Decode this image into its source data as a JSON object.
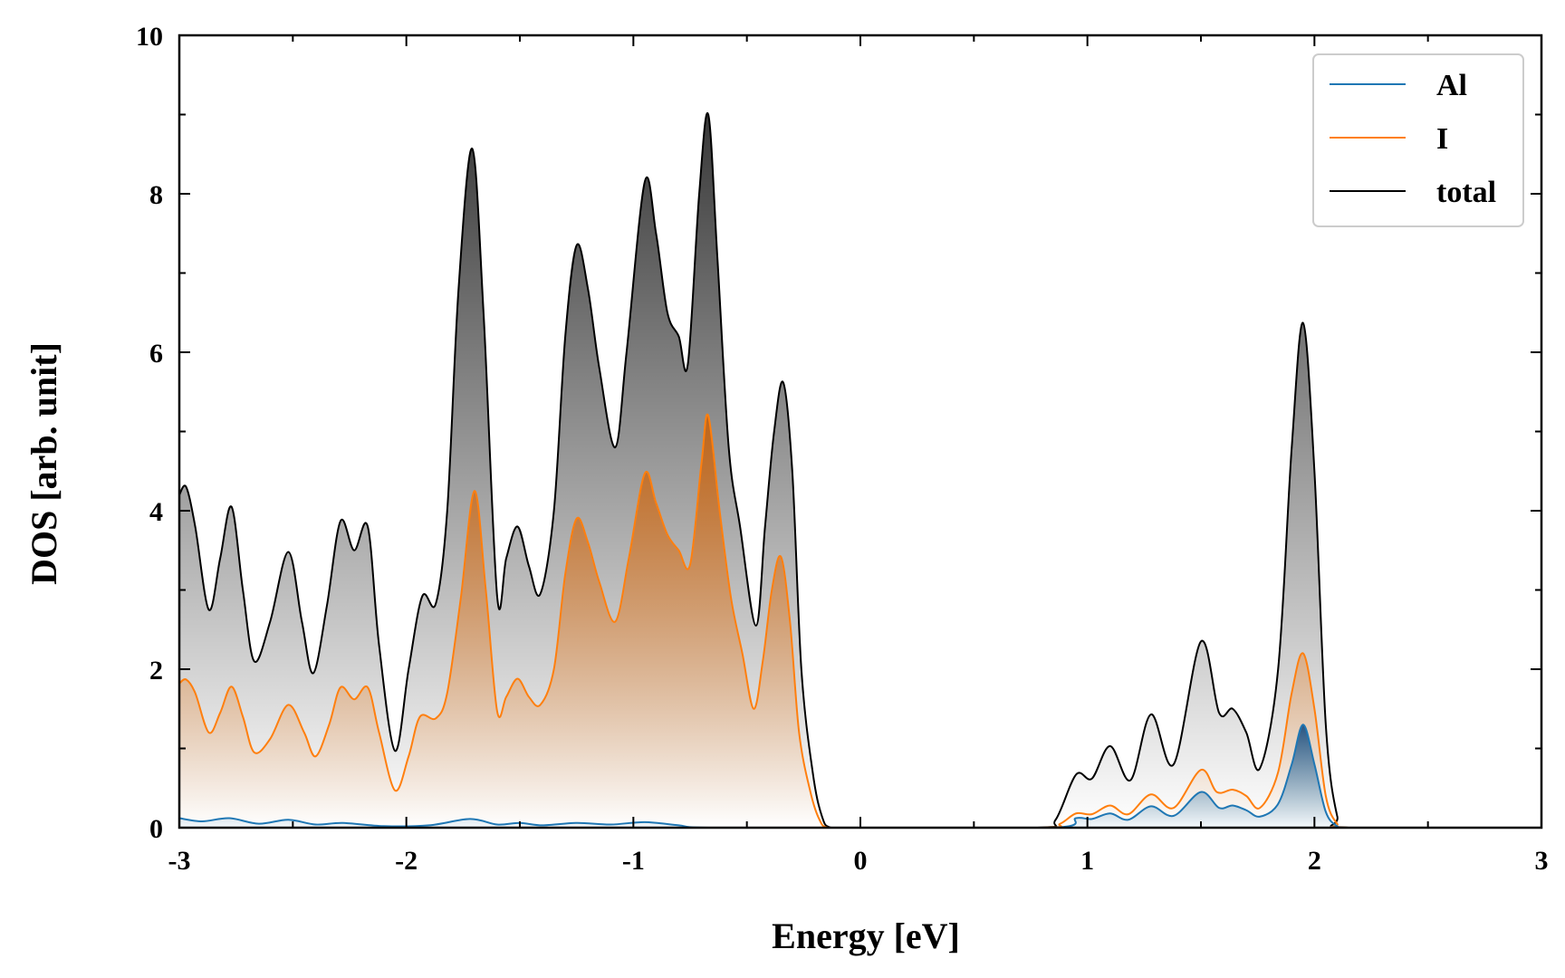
{
  "chart_data": {
    "type": "area",
    "title": "",
    "xlabel": "Energy [eV]",
    "ylabel": "DOS [arb. unit]",
    "xlim": [
      -3,
      3
    ],
    "ylim": [
      0,
      10
    ],
    "x_ticks": [
      "-3",
      "-2",
      "-1",
      "0",
      "1",
      "2",
      "3"
    ],
    "y_ticks": [
      "0",
      "2",
      "4",
      "6",
      "8",
      "10"
    ],
    "grid": false,
    "legend_position": "top-right",
    "series": [
      {
        "name": "Al",
        "color": "#1f77b4",
        "fill": "gradient",
        "points": [
          [
            -3.0,
            0.12
          ],
          [
            -2.9,
            0.08
          ],
          [
            -2.78,
            0.12
          ],
          [
            -2.65,
            0.05
          ],
          [
            -2.52,
            0.1
          ],
          [
            -2.4,
            0.04
          ],
          [
            -2.28,
            0.06
          ],
          [
            -2.1,
            0.02
          ],
          [
            -1.9,
            0.03
          ],
          [
            -1.72,
            0.11
          ],
          [
            -1.6,
            0.04
          ],
          [
            -1.5,
            0.06
          ],
          [
            -1.4,
            0.03
          ],
          [
            -1.25,
            0.06
          ],
          [
            -1.1,
            0.04
          ],
          [
            -0.95,
            0.07
          ],
          [
            -0.8,
            0.03
          ],
          [
            -0.67,
            0.0
          ],
          [
            0.0,
            0.0
          ],
          [
            0.85,
            0.0
          ],
          [
            0.95,
            0.12
          ],
          [
            1.02,
            0.11
          ],
          [
            1.1,
            0.18
          ],
          [
            1.18,
            0.1
          ],
          [
            1.28,
            0.27
          ],
          [
            1.38,
            0.15
          ],
          [
            1.5,
            0.45
          ],
          [
            1.58,
            0.25
          ],
          [
            1.64,
            0.28
          ],
          [
            1.7,
            0.22
          ],
          [
            1.76,
            0.14
          ],
          [
            1.84,
            0.3
          ],
          [
            1.9,
            0.8
          ],
          [
            1.95,
            1.3
          ],
          [
            2.0,
            0.8
          ],
          [
            2.05,
            0.2
          ],
          [
            2.1,
            0.02
          ],
          [
            2.15,
            0.0
          ],
          [
            3.0,
            0.0
          ]
        ]
      },
      {
        "name": "I",
        "color": "#ff7f0e",
        "fill": "gradient",
        "points": [
          [
            -3.0,
            1.82
          ],
          [
            -2.97,
            1.87
          ],
          [
            -2.93,
            1.7
          ],
          [
            -2.87,
            1.2
          ],
          [
            -2.82,
            1.45
          ],
          [
            -2.77,
            1.78
          ],
          [
            -2.72,
            1.4
          ],
          [
            -2.67,
            0.95
          ],
          [
            -2.6,
            1.12
          ],
          [
            -2.52,
            1.55
          ],
          [
            -2.45,
            1.2
          ],
          [
            -2.4,
            0.9
          ],
          [
            -2.34,
            1.3
          ],
          [
            -2.29,
            1.77
          ],
          [
            -2.23,
            1.62
          ],
          [
            -2.17,
            1.77
          ],
          [
            -2.12,
            1.2
          ],
          [
            -2.05,
            0.47
          ],
          [
            -1.99,
            0.9
          ],
          [
            -1.94,
            1.4
          ],
          [
            -1.87,
            1.38
          ],
          [
            -1.82,
            1.7
          ],
          [
            -1.76,
            2.9
          ],
          [
            -1.7,
            4.25
          ],
          [
            -1.65,
            3.0
          ],
          [
            -1.6,
            1.47
          ],
          [
            -1.56,
            1.65
          ],
          [
            -1.51,
            1.88
          ],
          [
            -1.46,
            1.65
          ],
          [
            -1.41,
            1.55
          ],
          [
            -1.35,
            2.0
          ],
          [
            -1.3,
            3.2
          ],
          [
            -1.25,
            3.9
          ],
          [
            -1.2,
            3.6
          ],
          [
            -1.15,
            3.1
          ],
          [
            -1.08,
            2.6
          ],
          [
            -1.02,
            3.4
          ],
          [
            -0.95,
            4.47
          ],
          [
            -0.9,
            4.1
          ],
          [
            -0.85,
            3.7
          ],
          [
            -0.8,
            3.5
          ],
          [
            -0.75,
            3.32
          ],
          [
            -0.7,
            4.6
          ],
          [
            -0.67,
            5.2
          ],
          [
            -0.62,
            4.0
          ],
          [
            -0.57,
            2.9
          ],
          [
            -0.52,
            2.2
          ],
          [
            -0.47,
            1.5
          ],
          [
            -0.43,
            2.1
          ],
          [
            -0.39,
            3.0
          ],
          [
            -0.35,
            3.42
          ],
          [
            -0.31,
            2.6
          ],
          [
            -0.27,
            1.2
          ],
          [
            -0.22,
            0.45
          ],
          [
            -0.18,
            0.1
          ],
          [
            -0.14,
            0.0
          ],
          [
            0.0,
            0.0
          ],
          [
            0.8,
            0.0
          ],
          [
            0.88,
            0.05
          ],
          [
            0.95,
            0.18
          ],
          [
            1.02,
            0.17
          ],
          [
            1.1,
            0.28
          ],
          [
            1.18,
            0.17
          ],
          [
            1.28,
            0.42
          ],
          [
            1.38,
            0.25
          ],
          [
            1.5,
            0.73
          ],
          [
            1.57,
            0.45
          ],
          [
            1.64,
            0.48
          ],
          [
            1.7,
            0.4
          ],
          [
            1.76,
            0.25
          ],
          [
            1.84,
            0.7
          ],
          [
            1.9,
            1.7
          ],
          [
            1.95,
            2.2
          ],
          [
            2.0,
            1.5
          ],
          [
            2.05,
            0.4
          ],
          [
            2.1,
            0.05
          ],
          [
            2.15,
            0.0
          ],
          [
            3.0,
            0.0
          ]
        ]
      },
      {
        "name": "total",
        "color": "#000000",
        "fill": "gradient",
        "points": [
          [
            -3.0,
            4.2
          ],
          [
            -2.97,
            4.3
          ],
          [
            -2.93,
            3.8
          ],
          [
            -2.87,
            2.75
          ],
          [
            -2.82,
            3.4
          ],
          [
            -2.77,
            4.05
          ],
          [
            -2.72,
            3.0
          ],
          [
            -2.67,
            2.1
          ],
          [
            -2.6,
            2.6
          ],
          [
            -2.52,
            3.48
          ],
          [
            -2.46,
            2.6
          ],
          [
            -2.41,
            1.95
          ],
          [
            -2.35,
            2.8
          ],
          [
            -2.29,
            3.87
          ],
          [
            -2.23,
            3.5
          ],
          [
            -2.17,
            3.8
          ],
          [
            -2.12,
            2.3
          ],
          [
            -2.05,
            0.97
          ],
          [
            -1.99,
            2.0
          ],
          [
            -1.93,
            2.92
          ],
          [
            -1.87,
            2.83
          ],
          [
            -1.82,
            4.0
          ],
          [
            -1.77,
            6.8
          ],
          [
            -1.71,
            8.57
          ],
          [
            -1.66,
            6.5
          ],
          [
            -1.6,
            2.92
          ],
          [
            -1.56,
            3.4
          ],
          [
            -1.51,
            3.8
          ],
          [
            -1.46,
            3.3
          ],
          [
            -1.41,
            2.95
          ],
          [
            -1.35,
            4.0
          ],
          [
            -1.3,
            6.2
          ],
          [
            -1.25,
            7.35
          ],
          [
            -1.2,
            6.8
          ],
          [
            -1.15,
            5.8
          ],
          [
            -1.08,
            4.8
          ],
          [
            -1.03,
            6.0
          ],
          [
            -0.95,
            8.15
          ],
          [
            -0.9,
            7.5
          ],
          [
            -0.85,
            6.5
          ],
          [
            -0.8,
            6.2
          ],
          [
            -0.76,
            5.85
          ],
          [
            -0.71,
            8.0
          ],
          [
            -0.67,
            9.0
          ],
          [
            -0.63,
            7.2
          ],
          [
            -0.58,
            4.8
          ],
          [
            -0.53,
            3.8
          ],
          [
            -0.46,
            2.55
          ],
          [
            -0.42,
            3.8
          ],
          [
            -0.38,
            5.0
          ],
          [
            -0.34,
            5.62
          ],
          [
            -0.3,
            4.5
          ],
          [
            -0.26,
            2.0
          ],
          [
            -0.21,
            0.7
          ],
          [
            -0.17,
            0.15
          ],
          [
            -0.13,
            0.0
          ],
          [
            0.0,
            0.0
          ],
          [
            0.78,
            0.0
          ],
          [
            0.86,
            0.1
          ],
          [
            0.95,
            0.67
          ],
          [
            1.02,
            0.62
          ],
          [
            1.1,
            1.03
          ],
          [
            1.19,
            0.6
          ],
          [
            1.28,
            1.43
          ],
          [
            1.38,
            0.8
          ],
          [
            1.5,
            2.35
          ],
          [
            1.58,
            1.45
          ],
          [
            1.64,
            1.5
          ],
          [
            1.7,
            1.2
          ],
          [
            1.76,
            0.75
          ],
          [
            1.84,
            2.0
          ],
          [
            1.9,
            4.8
          ],
          [
            1.95,
            6.37
          ],
          [
            2.0,
            4.5
          ],
          [
            2.05,
            1.3
          ],
          [
            2.1,
            0.15
          ],
          [
            2.15,
            0.0
          ],
          [
            3.0,
            0.0
          ]
        ]
      }
    ]
  }
}
